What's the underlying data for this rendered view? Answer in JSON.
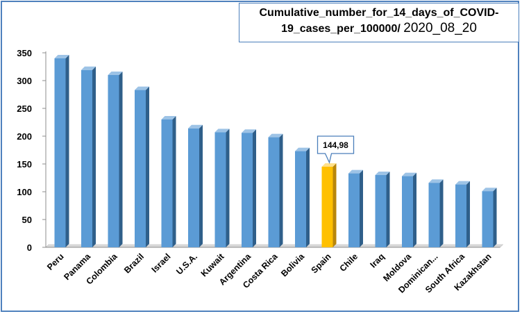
{
  "chart_data": {
    "type": "bar",
    "title": "Cumulative_number_for_14_days_of_COVID-19_cases_per_100000/ 2020_08_20",
    "title_line1": "Cumulative_number_for_14_days_of_COVID-",
    "title_line2": "19_cases_per_100000/ ",
    "title_date": "2020_08_20",
    "categories": [
      "Peru",
      "Panama",
      "Colombia",
      "Brazil",
      "Israel",
      "U.S.A.",
      "Kuwait",
      "Argentina",
      "Costa Rica",
      "Bolivia",
      "Spain",
      "Chile",
      "Iraq",
      "Moldova",
      "Dominican...",
      "South Africa",
      "Kazakhstan"
    ],
    "values": [
      340,
      319,
      310,
      283,
      230,
      214,
      207,
      206,
      198,
      173,
      144.98,
      133,
      130,
      128,
      116,
      113,
      101
    ],
    "highlight_index": 10,
    "highlight_label": "144,98",
    "ylim": [
      0,
      350
    ],
    "yticks": [
      "0",
      "50",
      "100",
      "150",
      "200",
      "250",
      "300",
      "350"
    ],
    "xlabel": "",
    "ylabel": "",
    "grid": false,
    "colors": {
      "bar_front": "#5b9bd5",
      "bar_side": "#2f5f8a",
      "bar_top": "#9dc3e6",
      "highlight_front": "#ffc000",
      "highlight_side": "#b8860b",
      "highlight_top": "#ffe08a",
      "frame": "#4f81bd"
    }
  }
}
